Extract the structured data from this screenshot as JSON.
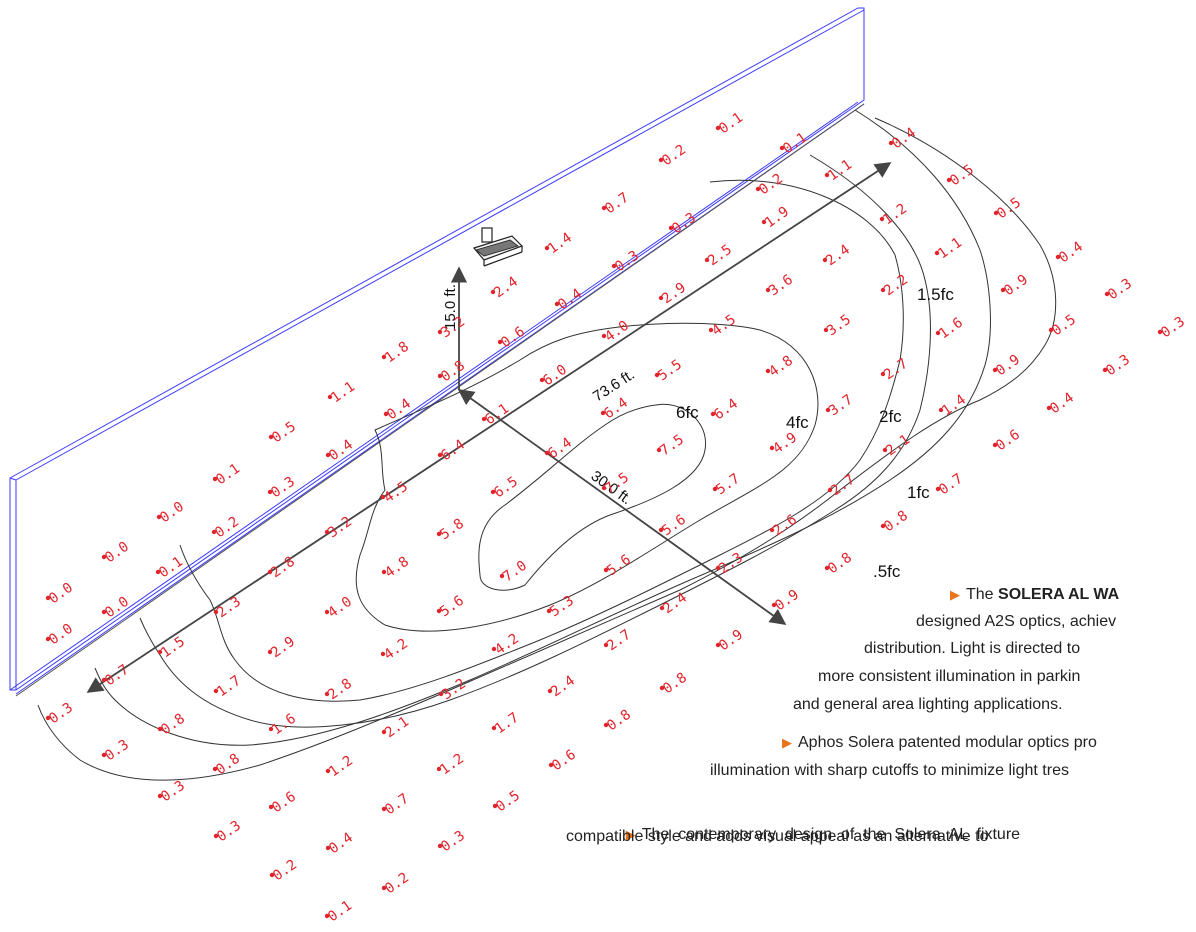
{
  "readings": [
    [
      "0.1",
      718,
      128
    ],
    [
      "0.1",
      782,
      148
    ],
    [
      "0.4",
      891,
      143
    ],
    [
      "0.2",
      661,
      160
    ],
    [
      "0.2",
      758,
      189
    ],
    [
      "1.1",
      827,
      175
    ],
    [
      "0.5",
      949,
      180
    ],
    [
      "0.7",
      604,
      208
    ],
    [
      "0.3",
      671,
      228
    ],
    [
      "1.9",
      764,
      222
    ],
    [
      "1.2",
      882,
      219
    ],
    [
      "0.5",
      996,
      213
    ],
    [
      "1.4",
      547,
      248
    ],
    [
      "0.3",
      614,
      266
    ],
    [
      "2.5",
      707,
      260
    ],
    [
      "2.4",
      825,
      260
    ],
    [
      "1.1",
      937,
      253
    ],
    [
      "0.4",
      1058,
      257
    ],
    [
      "2.4",
      493,
      292
    ],
    [
      "0.4",
      557,
      304
    ],
    [
      "2.9",
      661,
      298
    ],
    [
      "3.6",
      768,
      290
    ],
    [
      "2.2",
      883,
      290
    ],
    [
      "0.9",
      1003,
      290
    ],
    [
      "0.3",
      1107,
      294
    ],
    [
      "3.2",
      440,
      332
    ],
    [
      "0.6",
      500,
      342
    ],
    [
      "4.0",
      604,
      336
    ],
    [
      "4.5",
      711,
      330
    ],
    [
      "3.5",
      826,
      330
    ],
    [
      "1.6",
      938,
      333
    ],
    [
      "0.5",
      1051,
      330
    ],
    [
      "0.3",
      1160,
      332
    ],
    [
      "1.8",
      384,
      357
    ],
    [
      "0.8",
      440,
      376
    ],
    [
      "6.0",
      542,
      380
    ],
    [
      "5.5",
      657,
      375
    ],
    [
      "4.8",
      768,
      371
    ],
    [
      "2.7",
      883,
      374
    ],
    [
      "0.9",
      995,
      370
    ],
    [
      "0.3",
      1105,
      370
    ],
    [
      "1.1",
      330,
      397
    ],
    [
      "0.4",
      386,
      414
    ],
    [
      "6.1",
      484,
      419
    ],
    [
      "6.4",
      603,
      413
    ],
    [
      "6.4",
      713,
      414
    ],
    [
      "3.7",
      828,
      410
    ],
    [
      "1.4",
      941,
      410
    ],
    [
      "0.4",
      1049,
      408
    ],
    [
      "0.5",
      271,
      437
    ],
    [
      "0.4",
      328,
      455
    ],
    [
      "6.4",
      440,
      455
    ],
    [
      "6.4",
      547,
      453
    ],
    [
      "7.5",
      659,
      450
    ],
    [
      "4.9",
      772,
      448
    ],
    [
      "2.1",
      885,
      450
    ],
    [
      "0.6",
      995,
      445
    ],
    [
      "0.1",
      215,
      479
    ],
    [
      "0.3",
      270,
      492
    ],
    [
      "4.5",
      383,
      497
    ],
    [
      "6.5",
      493,
      492
    ],
    [
      "7.5",
      604,
      488
    ],
    [
      "5.7",
      715,
      489
    ],
    [
      "2.7",
      830,
      490
    ],
    [
      "0.7",
      938,
      489
    ],
    [
      "0.0",
      159,
      517
    ],
    [
      "0.2",
      214,
      532
    ],
    [
      "3.2",
      327,
      532
    ],
    [
      "5.8",
      439,
      534
    ],
    [
      "5.6",
      661,
      530
    ],
    [
      "2.6",
      772,
      530
    ],
    [
      "0.8",
      883,
      526
    ],
    [
      "0.0",
      104,
      557
    ],
    [
      "0.1",
      158,
      572
    ],
    [
      "2.8",
      270,
      572
    ],
    [
      "4.8",
      384,
      572
    ],
    [
      "7.0",
      502,
      576
    ],
    [
      "5.6",
      606,
      570
    ],
    [
      "2.3",
      718,
      568
    ],
    [
      "0.8",
      827,
      568
    ],
    [
      "0.0",
      48,
      598
    ],
    [
      "0.0",
      104,
      612
    ],
    [
      "2.3",
      216,
      612
    ],
    [
      "4.0",
      327,
      612
    ],
    [
      "5.6",
      439,
      611
    ],
    [
      "5.3",
      549,
      611
    ],
    [
      "2.4",
      662,
      608
    ],
    [
      "0.9",
      774,
      605
    ],
    [
      "0.0",
      48,
      639
    ],
    [
      "1.5",
      160,
      652
    ],
    [
      "2.9",
      270,
      652
    ],
    [
      "4.2",
      383,
      654
    ],
    [
      "4.2",
      494,
      649
    ],
    [
      "2.7",
      606,
      645
    ],
    [
      "0.9",
      718,
      645
    ],
    [
      "0.7",
      104,
      680
    ],
    [
      "1.7",
      216,
      691
    ],
    [
      "2.8",
      327,
      694
    ],
    [
      "3.2",
      441,
      694
    ],
    [
      "2.4",
      550,
      691
    ],
    [
      "0.8",
      662,
      688
    ],
    [
      "0.3",
      48,
      718
    ],
    [
      "0.8",
      160,
      729
    ],
    [
      "1.6",
      271,
      729
    ],
    [
      "2.1",
      384,
      732
    ],
    [
      "1.7",
      494,
      728
    ],
    [
      "0.8",
      606,
      725
    ],
    [
      "0.3",
      104,
      755
    ],
    [
      "0.8",
      215,
      769
    ],
    [
      "1.2",
      328,
      771
    ],
    [
      "1.2",
      439,
      769
    ],
    [
      "0.6",
      551,
      765
    ],
    [
      "0.3",
      160,
      796
    ],
    [
      "0.6",
      271,
      807
    ],
    [
      "0.7",
      384,
      809
    ],
    [
      "0.5",
      495,
      806
    ],
    [
      "0.3",
      216,
      836
    ],
    [
      "0.4",
      328,
      848
    ],
    [
      "0.3",
      440,
      846
    ],
    [
      "0.2",
      272,
      875
    ],
    [
      "0.2",
      384,
      888
    ],
    [
      "0.1",
      327,
      916
    ]
  ],
  "contour_labels": {
    "c6": "6fc",
    "c4": "4fc",
    "c2": "2fc",
    "c15": "1.5fc",
    "c1": "1fc",
    "c05": ".5fc"
  },
  "dimensions": {
    "height": "15.0 ft.",
    "length": "73.6 ft.",
    "depth": "30.0 ft."
  },
  "description": {
    "p1_lead": "The ",
    "p1_bold": "SOLERA AL WA",
    "p1_l2": "designed A2S optics, achiev",
    "p1_l3": "distribution.  Light is directed to",
    "p1_l4": "more consistent illumination in parkin",
    "p1_l5": "and general area lighting applications.",
    "p2_l1": "Aphos Solera patented modular optics pro",
    "p2_l2": "illumination with sharp cutoffs to minimize light tres",
    "p3_l1": "The  contemporary  design  of  the  Solera  AL  fixture",
    "p3_l2": "compatible style and adds visual appeal as an alternative to"
  },
  "colors": {
    "reading": "#e3232b",
    "wall": "#3b3bff",
    "bullet": "#e8751a",
    "contour": "#333333",
    "dimension": "#444444"
  }
}
